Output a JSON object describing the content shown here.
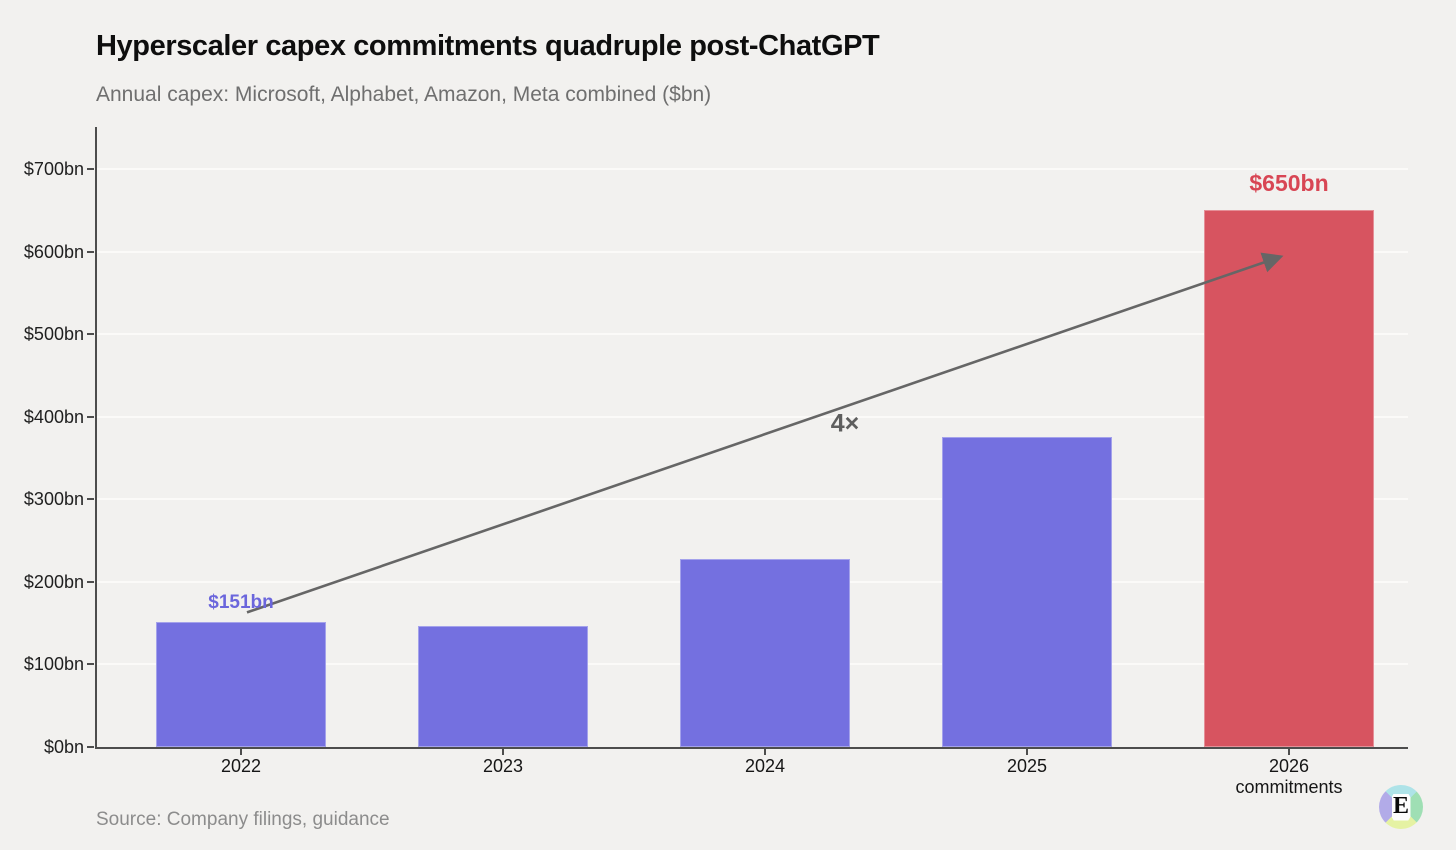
{
  "header": {
    "title": "Hyperscaler capex commitments quadruple post-ChatGPT",
    "subtitle": "Annual capex: Microsoft, Alphabet, Amazon, Meta combined ($bn)"
  },
  "chart_data": {
    "type": "bar",
    "categories": [
      "2022",
      "2023",
      "2024",
      "2025",
      "2026"
    ],
    "category_sublabels": [
      "",
      "",
      "",
      "",
      "commitments"
    ],
    "values": [
      151,
      146,
      228,
      375,
      650
    ],
    "bar_colors": [
      "#7470e0",
      "#7470e0",
      "#7470e0",
      "#7470e0",
      "#d75460"
    ],
    "y_ticks": [
      0,
      100,
      200,
      300,
      400,
      500,
      600,
      700
    ],
    "y_tick_prefix": "$",
    "y_tick_suffix": "bn",
    "ylim": [
      0,
      750
    ],
    "grid": "horizontal",
    "axis_color": "#4d4d4d",
    "grid_color": "#fbfaf8",
    "annotations": [
      {
        "role": "bar-value-label",
        "text": "$151bn",
        "category": "2022",
        "color": "#6b66dc",
        "emphasis": false,
        "gap": 8
      },
      {
        "role": "bar-value-label",
        "text": "$650bn",
        "category": "2026",
        "color": "#d84654",
        "emphasis": true,
        "gap": 13
      },
      {
        "role": "multiplier-label",
        "text": "4×",
        "color": "#5e5e5e",
        "x": 845,
        "y": 424
      }
    ],
    "arrow": {
      "from": {
        "category": "2022",
        "value": 163,
        "dx": 6
      },
      "to": {
        "category": "2026",
        "value": 594,
        "dx": -8
      },
      "color": "#666666"
    }
  },
  "footer": {
    "source": "Source: Company filings, guidance"
  },
  "logo": {
    "letter": "E",
    "quadrant_colors": {
      "top": "#aee3e8",
      "right": "#9fdfb4",
      "bottom": "#e5f2a3",
      "left": "#b2abe8"
    }
  }
}
